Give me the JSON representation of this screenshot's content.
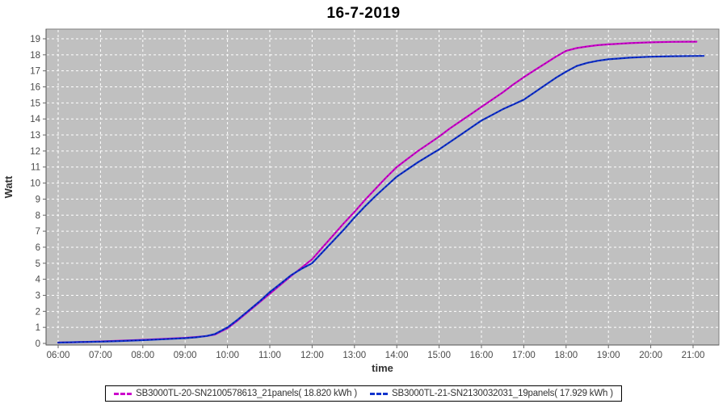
{
  "title": "16-7-2019",
  "colors": {
    "page_bg": "#FFFFFF",
    "plot_bg": "#C0C0C0",
    "grid": "#FFFFFF",
    "plot_border": "#808080",
    "axis_line": "#555555",
    "tick": "#666666",
    "tick_label": "#4a4a4a",
    "title_text": "#000000",
    "series1": "#CC00CC",
    "series1_dash": "#990099",
    "series2": "#1133CC",
    "series2_dash": "#001899"
  },
  "chart_data": {
    "type": "line",
    "title": "16-7-2019",
    "xlabel": "time",
    "ylabel": "Watt",
    "grid": "on (white dashed, hourly vertical, every 1 unit horizontal)",
    "legend_position": "bottom",
    "x_tick_hours": [
      6,
      7,
      8,
      9,
      10,
      11,
      12,
      13,
      14,
      15,
      16,
      17,
      18,
      19,
      20,
      21
    ],
    "x_tick_labels": [
      "06:00",
      "07:00",
      "08:00",
      "09:00",
      "10:00",
      "11:00",
      "12:00",
      "13:00",
      "14:00",
      "15:00",
      "16:00",
      "17:00",
      "18:00",
      "19:00",
      "20:00",
      "21:00"
    ],
    "y_ticks": [
      0,
      1,
      2,
      3,
      4,
      5,
      6,
      7,
      8,
      9,
      10,
      11,
      12,
      13,
      14,
      15,
      16,
      17,
      18,
      19
    ],
    "ylim": [
      0,
      19.6
    ],
    "xlim_hours": [
      5.71,
      21.61
    ],
    "series": [
      {
        "name": "SB3000TL-20-SN2100578613_21panels( 18.820 kWh )",
        "total_kwh": "18.820",
        "color": "#CC00CC",
        "dash_color": "#990099",
        "points": [
          [
            6.0,
            0.05
          ],
          [
            6.5,
            0.08
          ],
          [
            7.0,
            0.12
          ],
          [
            7.5,
            0.17
          ],
          [
            8.0,
            0.22
          ],
          [
            8.5,
            0.28
          ],
          [
            9.0,
            0.35
          ],
          [
            9.25,
            0.4
          ],
          [
            9.5,
            0.46
          ],
          [
            9.7,
            0.55
          ],
          [
            10.0,
            0.95
          ],
          [
            10.25,
            1.45
          ],
          [
            10.5,
            2.0
          ],
          [
            10.75,
            2.55
          ],
          [
            11.0,
            3.1
          ],
          [
            11.25,
            3.65
          ],
          [
            11.5,
            4.2
          ],
          [
            11.75,
            4.72
          ],
          [
            12.0,
            5.25
          ],
          [
            12.25,
            6.0
          ],
          [
            12.5,
            6.75
          ],
          [
            12.75,
            7.5
          ],
          [
            13.0,
            8.2
          ],
          [
            13.25,
            8.95
          ],
          [
            13.5,
            9.65
          ],
          [
            13.75,
            10.35
          ],
          [
            14.0,
            11.0
          ],
          [
            14.25,
            11.5
          ],
          [
            14.5,
            12.0
          ],
          [
            14.75,
            12.45
          ],
          [
            15.0,
            12.9
          ],
          [
            15.25,
            13.4
          ],
          [
            15.5,
            13.85
          ],
          [
            15.75,
            14.3
          ],
          [
            16.0,
            14.75
          ],
          [
            16.25,
            15.2
          ],
          [
            16.5,
            15.65
          ],
          [
            16.75,
            16.15
          ],
          [
            17.0,
            16.6
          ],
          [
            17.25,
            17.03
          ],
          [
            17.5,
            17.45
          ],
          [
            17.75,
            17.87
          ],
          [
            18.0,
            18.25
          ],
          [
            18.25,
            18.42
          ],
          [
            18.5,
            18.52
          ],
          [
            18.75,
            18.6
          ],
          [
            19.0,
            18.65
          ],
          [
            19.5,
            18.73
          ],
          [
            20.0,
            18.78
          ],
          [
            20.5,
            18.81
          ],
          [
            21.0,
            18.82
          ],
          [
            21.08,
            18.82
          ]
        ]
      },
      {
        "name": "SB3000TL-21-SN2130032031_19panels( 17.929 kWh )",
        "total_kwh": "17.929",
        "color": "#1133CC",
        "dash_color": "#001899",
        "points": [
          [
            6.0,
            0.05
          ],
          [
            6.5,
            0.08
          ],
          [
            7.0,
            0.11
          ],
          [
            7.5,
            0.15
          ],
          [
            8.0,
            0.2
          ],
          [
            8.5,
            0.26
          ],
          [
            9.0,
            0.33
          ],
          [
            9.25,
            0.38
          ],
          [
            9.5,
            0.46
          ],
          [
            9.7,
            0.58
          ],
          [
            10.0,
            1.0
          ],
          [
            10.25,
            1.5
          ],
          [
            10.5,
            2.05
          ],
          [
            10.75,
            2.6
          ],
          [
            11.0,
            3.2
          ],
          [
            11.25,
            3.72
          ],
          [
            11.5,
            4.25
          ],
          [
            11.75,
            4.65
          ],
          [
            12.0,
            5.0
          ],
          [
            12.25,
            5.7
          ],
          [
            12.5,
            6.4
          ],
          [
            12.75,
            7.1
          ],
          [
            13.0,
            7.85
          ],
          [
            13.25,
            8.55
          ],
          [
            13.5,
            9.2
          ],
          [
            13.75,
            9.8
          ],
          [
            14.0,
            10.4
          ],
          [
            14.25,
            10.85
          ],
          [
            14.5,
            11.3
          ],
          [
            14.75,
            11.7
          ],
          [
            15.0,
            12.1
          ],
          [
            15.25,
            12.55
          ],
          [
            15.5,
            13.0
          ],
          [
            15.75,
            13.45
          ],
          [
            16.0,
            13.9
          ],
          [
            16.25,
            14.25
          ],
          [
            16.5,
            14.6
          ],
          [
            16.75,
            14.9
          ],
          [
            17.0,
            15.2
          ],
          [
            17.25,
            15.65
          ],
          [
            17.5,
            16.1
          ],
          [
            17.75,
            16.55
          ],
          [
            18.0,
            16.95
          ],
          [
            18.25,
            17.3
          ],
          [
            18.5,
            17.5
          ],
          [
            18.75,
            17.63
          ],
          [
            19.0,
            17.72
          ],
          [
            19.5,
            17.82
          ],
          [
            20.0,
            17.88
          ],
          [
            20.5,
            17.91
          ],
          [
            21.0,
            17.925
          ],
          [
            21.25,
            17.93
          ]
        ]
      }
    ]
  },
  "legend": {
    "entries": [
      {
        "label": "SB3000TL-20-SN2100578613_21panels( 18.820 kWh )"
      },
      {
        "label": "SB3000TL-21-SN2130032031_19panels( 17.929 kWh )"
      }
    ]
  }
}
